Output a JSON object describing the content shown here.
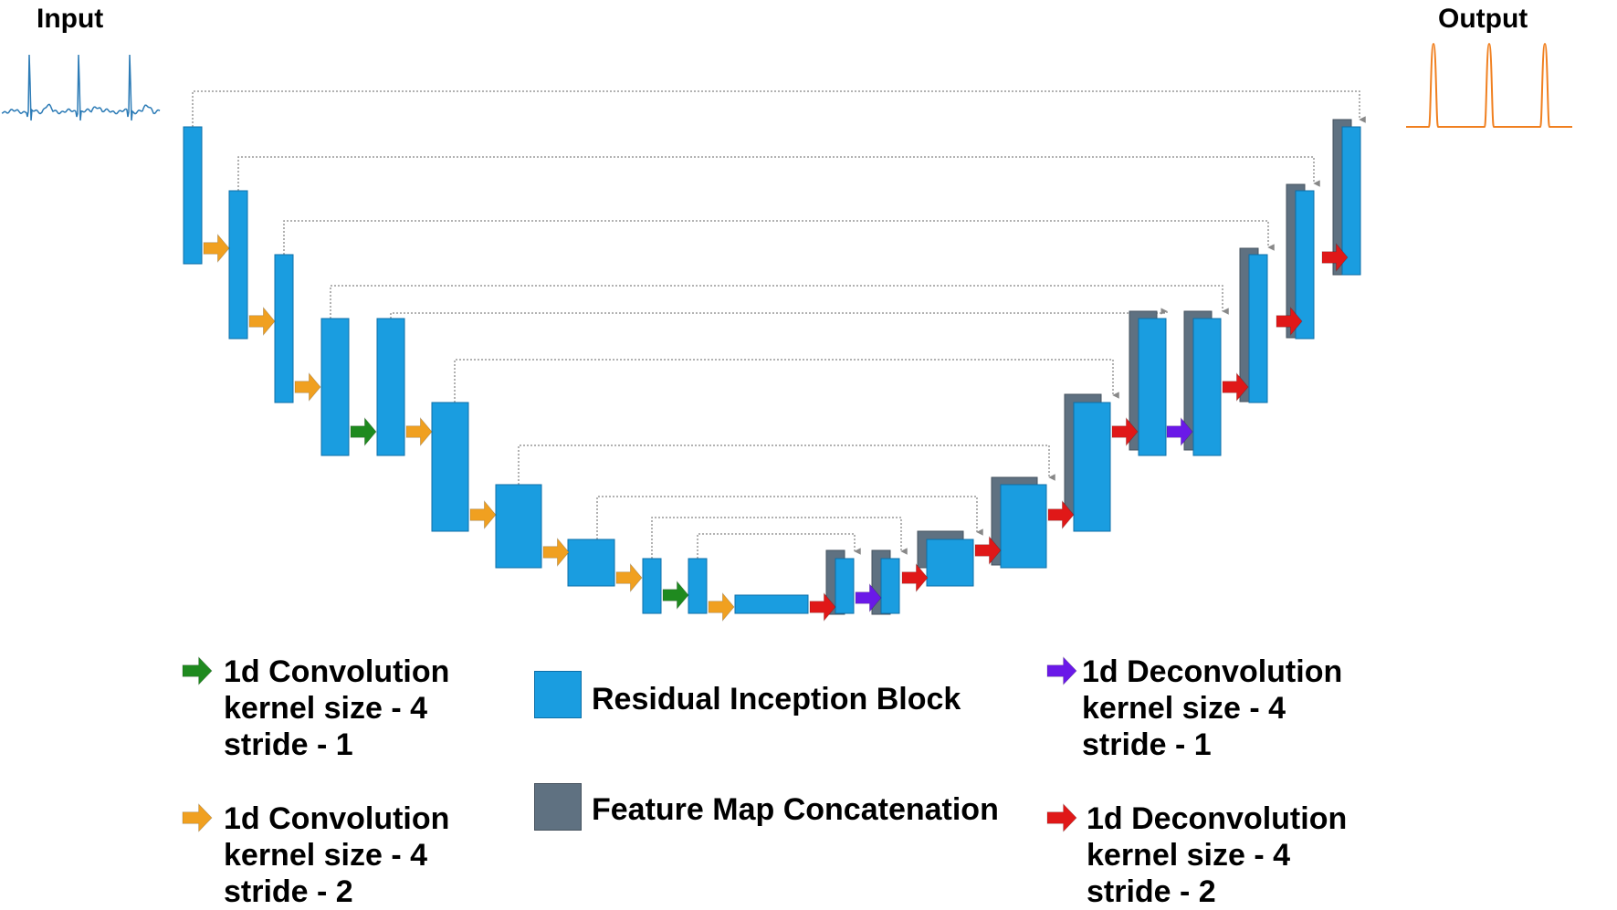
{
  "labels": {
    "input": "Input",
    "output": "Output"
  },
  "colors": {
    "block": "#1a9de0",
    "block_edge": "#0d6fa8",
    "concat": "#5f7181",
    "conv_s1": "#1f8a1f",
    "conv_s2": "#f0a020",
    "deconv_s1": "#6a19e8",
    "deconv_s2": "#e01818",
    "skip": "#999999",
    "input_signal": "#2c7bb6",
    "output_signal": "#f08020"
  },
  "legend": {
    "conv_s1": {
      "icon": "green-arrow-icon",
      "lines": [
        "1d Convolution",
        "kernel size - 4",
        "stride - 1"
      ]
    },
    "conv_s2": {
      "icon": "orange-arrow-icon",
      "lines": [
        "1d Convolution",
        "kernel size - 4",
        "stride - 2"
      ]
    },
    "block": {
      "icon": "blue-square-icon",
      "label": "Residual Inception Block"
    },
    "concat": {
      "icon": "gray-square-icon",
      "label": "Feature Map Concatenation"
    },
    "deconv_s1": {
      "icon": "purple-arrow-icon",
      "lines": [
        "1d Deconvolution",
        "kernel size - 4",
        "stride - 1"
      ]
    },
    "deconv_s2": {
      "icon": "red-arrow-icon",
      "lines": [
        "1d Deconvolution",
        "kernel size - 4",
        "stride - 2"
      ]
    }
  }
}
